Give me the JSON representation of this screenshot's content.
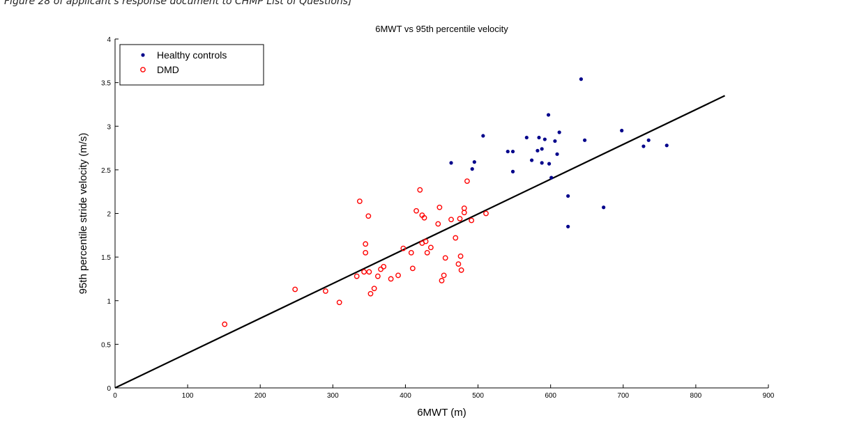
{
  "caption": "Figure 28 of applicant's response document to CHMP List of Questions]",
  "chart_data": {
    "type": "scatter",
    "title": "6MWT vs 95th percentile velocity",
    "xlabel": "6MWT (m)",
    "ylabel": "95th percentile stride velocity (m/s)",
    "xlim": [
      0,
      900
    ],
    "ylim": [
      0,
      4
    ],
    "xticks": [
      "0",
      "100",
      "200",
      "300",
      "400",
      "500",
      "600",
      "700",
      "800",
      "900"
    ],
    "yticks": [
      "0",
      "0.5",
      "1",
      "1.5",
      "2",
      "2.5",
      "3",
      "3.5",
      "4"
    ],
    "legend_position": "top-left",
    "series": [
      {
        "name": "Healthy controls",
        "marker": "filled-dot",
        "color": "#00008b",
        "points": [
          [
            463,
            2.58
          ],
          [
            492,
            2.51
          ],
          [
            495,
            2.59
          ],
          [
            507,
            2.89
          ],
          [
            541,
            2.71
          ],
          [
            548,
            2.71
          ],
          [
            548,
            2.48
          ],
          [
            567,
            2.87
          ],
          [
            574,
            2.61
          ],
          [
            582,
            2.72
          ],
          [
            584,
            2.87
          ],
          [
            588,
            2.74
          ],
          [
            588,
            2.58
          ],
          [
            592,
            2.85
          ],
          [
            597,
            3.13
          ],
          [
            598,
            2.57
          ],
          [
            601,
            2.41
          ],
          [
            606,
            2.83
          ],
          [
            609,
            2.68
          ],
          [
            612,
            2.93
          ],
          [
            624,
            2.2
          ],
          [
            624,
            1.85
          ],
          [
            642,
            3.54
          ],
          [
            647,
            2.84
          ],
          [
            673,
            2.07
          ],
          [
            698,
            2.95
          ],
          [
            728,
            2.77
          ],
          [
            735,
            2.84
          ],
          [
            760,
            2.78
          ]
        ]
      },
      {
        "name": "DMD",
        "marker": "open-circle",
        "color": "#ff0000",
        "points": [
          [
            151,
            0.73
          ],
          [
            248,
            1.13
          ],
          [
            290,
            1.11
          ],
          [
            309,
            0.98
          ],
          [
            333,
            1.28
          ],
          [
            337,
            2.14
          ],
          [
            343,
            1.33
          ],
          [
            345,
            1.65
          ],
          [
            345,
            1.55
          ],
          [
            349,
            1.97
          ],
          [
            350,
            1.33
          ],
          [
            352,
            1.08
          ],
          [
            357,
            1.14
          ],
          [
            362,
            1.28
          ],
          [
            366,
            1.36
          ],
          [
            370,
            1.39
          ],
          [
            380,
            1.25
          ],
          [
            390,
            1.29
          ],
          [
            397,
            1.6
          ],
          [
            408,
            1.55
          ],
          [
            410,
            1.37
          ],
          [
            415,
            2.03
          ],
          [
            420,
            2.27
          ],
          [
            423,
            1.98
          ],
          [
            423,
            1.66
          ],
          [
            426,
            1.95
          ],
          [
            428,
            1.68
          ],
          [
            430,
            1.55
          ],
          [
            435,
            1.61
          ],
          [
            445,
            1.88
          ],
          [
            447,
            2.07
          ],
          [
            450,
            1.23
          ],
          [
            453,
            1.29
          ],
          [
            455,
            1.49
          ],
          [
            463,
            1.93
          ],
          [
            469,
            1.72
          ],
          [
            473,
            1.42
          ],
          [
            475,
            1.94
          ],
          [
            476,
            1.51
          ],
          [
            477,
            1.35
          ],
          [
            481,
            2.06
          ],
          [
            481,
            2.01
          ],
          [
            485,
            2.37
          ],
          [
            491,
            1.92
          ],
          [
            511,
            2.0
          ]
        ]
      }
    ],
    "fit_line": {
      "x": [
        0,
        840
      ],
      "y": [
        0,
        3.35
      ],
      "color": "#000000"
    }
  }
}
